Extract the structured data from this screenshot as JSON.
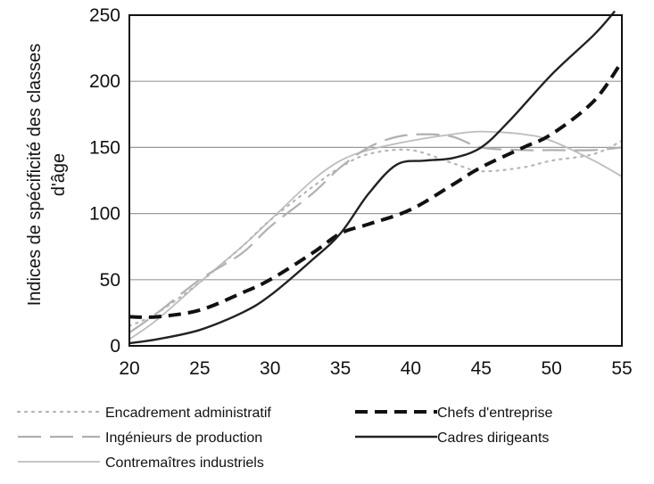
{
  "chart_data": {
    "type": "line",
    "title": "",
    "xlabel": "",
    "ylabel": "Indices de spécificité des classes d'âge",
    "ylabel_lines": [
      "Indices de spécificité des classes",
      "d'âge"
    ],
    "xlim": [
      20,
      55
    ],
    "ylim": [
      0,
      250
    ],
    "xticks": [
      "20",
      "25",
      "30",
      "35",
      "40",
      "45",
      "50",
      "55"
    ],
    "yticks": [
      "0",
      "50",
      "100",
      "150",
      "200",
      "250"
    ],
    "grid": "horizontal",
    "legend_position": "bottom",
    "series": [
      {
        "name": "Encadrement administratif",
        "style": "dotted",
        "color": "#b5b5b5",
        "x": [
          20,
          22,
          25,
          28,
          30,
          33,
          35,
          37,
          40,
          43,
          45,
          48,
          50,
          53,
          55
        ],
        "y": [
          15,
          25,
          48,
          75,
          95,
          120,
          135,
          145,
          148,
          138,
          132,
          135,
          140,
          145,
          155
        ]
      },
      {
        "name": "Chefs d'entreprise",
        "style": "dashed",
        "color": "#111111",
        "x": [
          20,
          22,
          25,
          28,
          30,
          33,
          35,
          37,
          40,
          43,
          45,
          48,
          50,
          53,
          55
        ],
        "y": [
          22,
          22,
          27,
          40,
          50,
          70,
          85,
          92,
          103,
          122,
          135,
          150,
          160,
          185,
          215
        ]
      },
      {
        "name": "Ingénieurs de production",
        "style": "longdash",
        "color": "#b0b0b0",
        "x": [
          20,
          22,
          25,
          28,
          30,
          33,
          35,
          37,
          39,
          41,
          43,
          45,
          48,
          50,
          53,
          55
        ],
        "y": [
          10,
          25,
          50,
          70,
          90,
          115,
          135,
          150,
          158,
          160,
          158,
          150,
          148,
          148,
          148,
          150
        ]
      },
      {
        "name": "Cadres dirigeants",
        "style": "solid",
        "color": "#222222",
        "x": [
          20,
          22,
          25,
          28,
          30,
          33,
          35,
          37,
          39,
          41,
          43,
          45,
          47,
          50,
          53,
          54.5
        ],
        "y": [
          2,
          5,
          12,
          25,
          38,
          65,
          85,
          115,
          137,
          140,
          142,
          150,
          170,
          205,
          235,
          253
        ]
      },
      {
        "name": "Contremaîtres industriels",
        "style": "thin",
        "color": "#bdbdbd",
        "x": [
          20,
          22,
          25,
          28,
          30,
          33,
          35,
          37,
          40,
          43,
          45,
          48,
          50,
          53,
          55
        ],
        "y": [
          5,
          20,
          48,
          75,
          95,
          125,
          140,
          148,
          155,
          160,
          162,
          160,
          155,
          140,
          128
        ]
      }
    ]
  }
}
